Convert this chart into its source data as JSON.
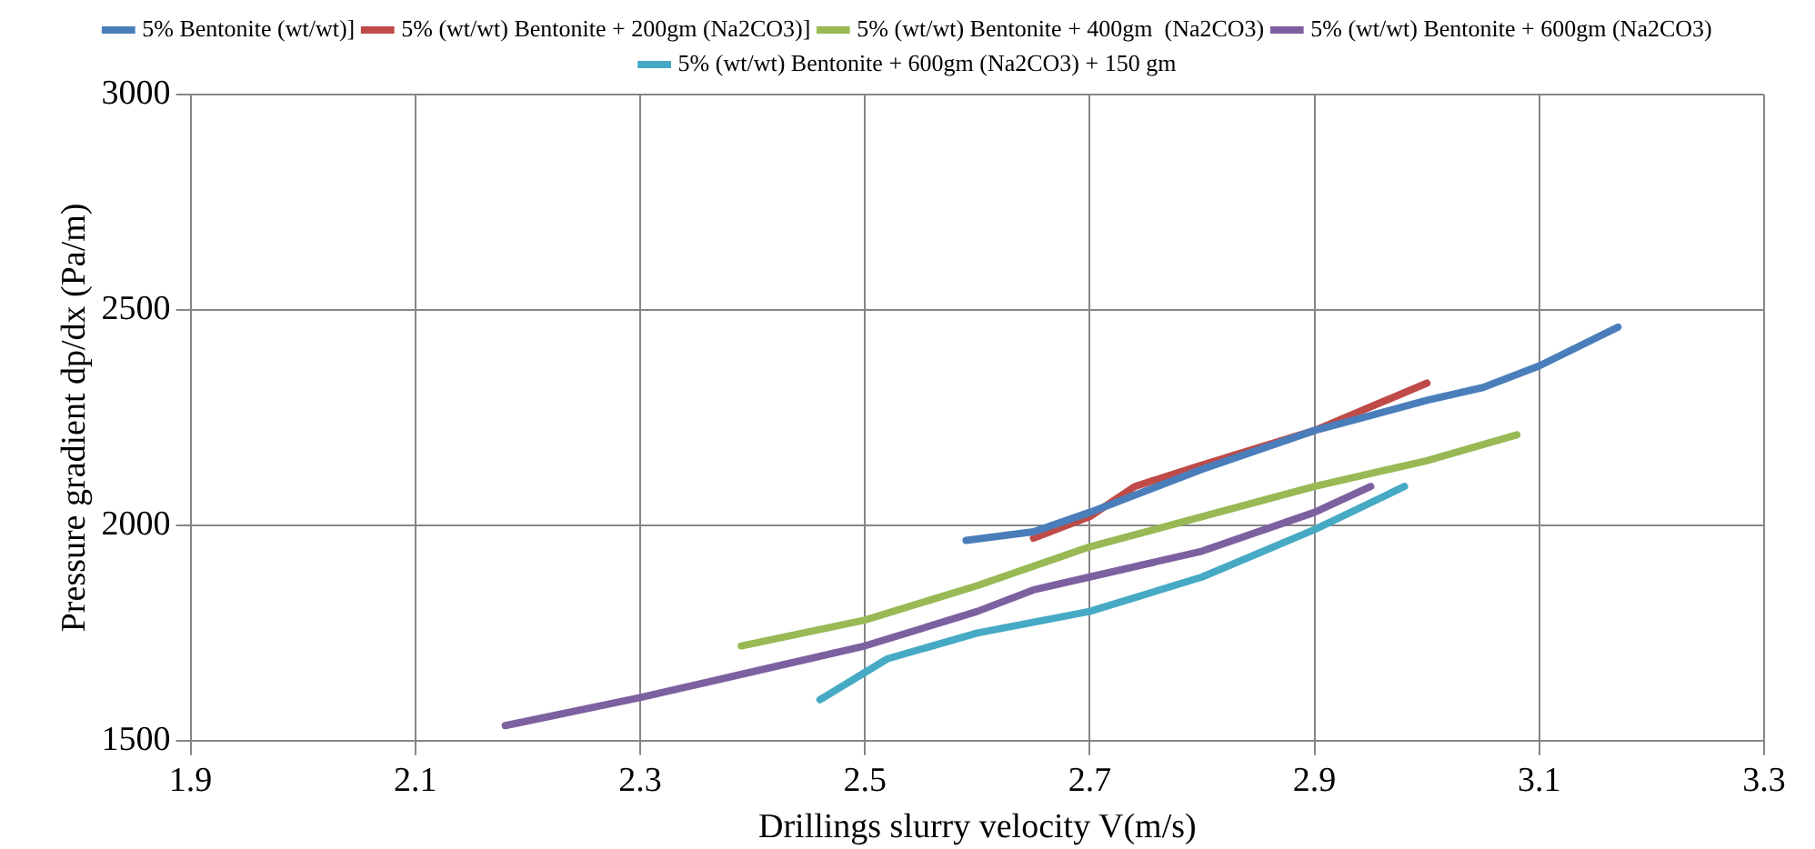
{
  "chart_data": {
    "type": "line",
    "xlabel": "Drillings slurry velocity V(m/s)",
    "ylabel": "Pressure gradient dp/dx (Pa/m)",
    "xlim": [
      1.9,
      3.3
    ],
    "xticks": [
      1.9,
      2.1,
      2.3,
      2.5,
      2.7,
      2.9,
      3.1,
      3.3
    ],
    "ylim": [
      1500,
      3000
    ],
    "yticks": [
      1500,
      2000,
      2500,
      3000
    ],
    "grid": true,
    "legend": "top",
    "marker": "none",
    "line_style": "solid",
    "series": [
      {
        "name": "5% Bentonite (wt/wt)]",
        "color": "#4a7ebb",
        "x": [
          2.59,
          2.65,
          2.7,
          2.8,
          2.9,
          3.0,
          3.05,
          3.1,
          3.17
        ],
        "values": [
          1965,
          1985,
          2030,
          2130,
          2220,
          2290,
          2320,
          2370,
          2460
        ]
      },
      {
        "name": "5% (wt/wt) Bentonite + 200gm (Na2CO3)]",
        "color": "#be4b48",
        "x": [
          2.65,
          2.7,
          2.74,
          2.8,
          2.9,
          3.0
        ],
        "values": [
          1970,
          2020,
          2090,
          2140,
          2220,
          2330
        ]
      },
      {
        "name": "5% (wt/wt) Bentonite + 400gm  (Na2CO3)",
        "color": "#98b954",
        "x": [
          2.39,
          2.5,
          2.6,
          2.7,
          2.8,
          2.9,
          3.0,
          3.08
        ],
        "values": [
          1720,
          1780,
          1860,
          1950,
          2020,
          2090,
          2150,
          2210
        ]
      },
      {
        "name": "5% (wt/wt) Bentonite + 600gm (Na2CO3)",
        "color": "#7d60a0",
        "x": [
          2.18,
          2.3,
          2.4,
          2.5,
          2.6,
          2.65,
          2.7,
          2.8,
          2.9,
          2.95
        ],
        "values": [
          1535,
          1600,
          1660,
          1720,
          1800,
          1850,
          1880,
          1940,
          2030,
          2090
        ]
      },
      {
        "name": "5% (wt/wt) Bentonite + 600gm (Na2CO3) + 150 gm",
        "color": "#46aac5",
        "x": [
          2.46,
          2.52,
          2.6,
          2.7,
          2.8,
          2.9,
          2.98
        ],
        "values": [
          1595,
          1690,
          1750,
          1800,
          1880,
          1990,
          2090
        ]
      }
    ]
  }
}
